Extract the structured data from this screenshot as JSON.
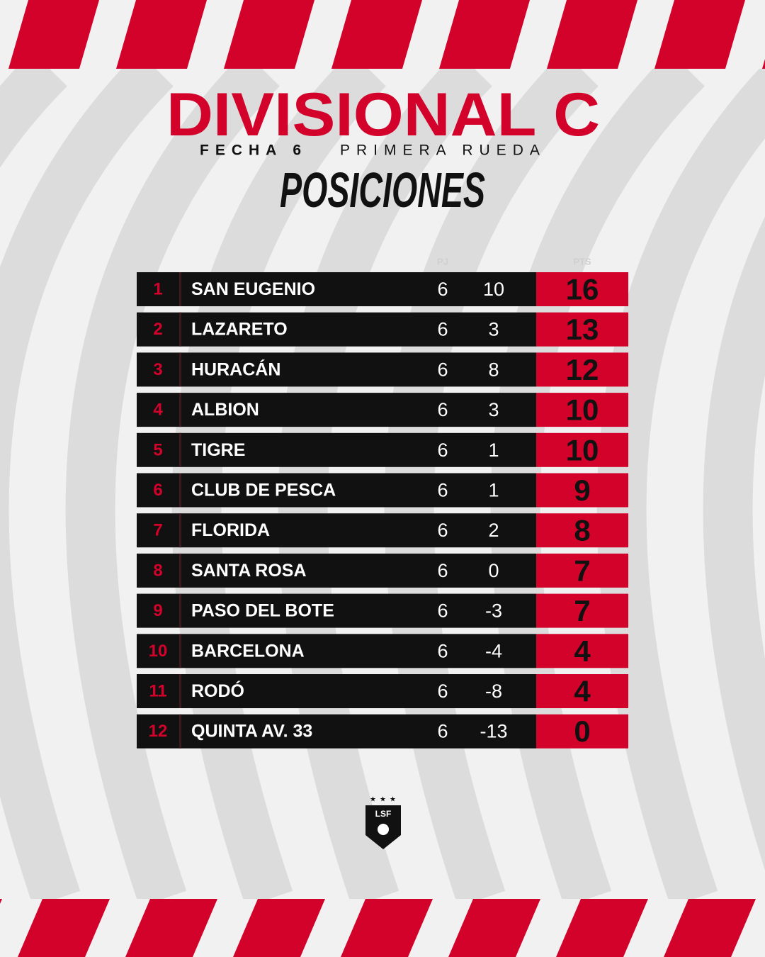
{
  "header": {
    "title": "DIVISIONAL C",
    "subtitle_bold": "FECHA 6",
    "subtitle": "PRIMERA RUEDA",
    "heading": "POSICIONES"
  },
  "table": {
    "columns": [
      "PJ",
      "PTS"
    ],
    "rows": [
      [
        1,
        "SAN EUGENIO",
        6,
        10,
        16
      ],
      [
        2,
        "LAZARETO",
        6,
        3,
        13
      ],
      [
        3,
        "HURACÁN",
        6,
        8,
        12
      ],
      [
        4,
        "ALBION",
        6,
        3,
        10
      ],
      [
        5,
        "TIGRE",
        6,
        1,
        10
      ],
      [
        6,
        "CLUB DE PESCA",
        6,
        1,
        9
      ],
      [
        7,
        "FLORIDA",
        6,
        2,
        8
      ],
      [
        8,
        "SANTA ROSA",
        6,
        0,
        7
      ],
      [
        9,
        "PASO DEL BOTE",
        6,
        -3,
        7
      ],
      [
        10,
        "BARCELONA",
        6,
        -4,
        4
      ],
      [
        11,
        "RODÓ",
        6,
        -8,
        4
      ],
      [
        12,
        "QUINTA AV. 33",
        6,
        -13,
        0
      ]
    ]
  },
  "logo": {
    "text": "LSF"
  }
}
